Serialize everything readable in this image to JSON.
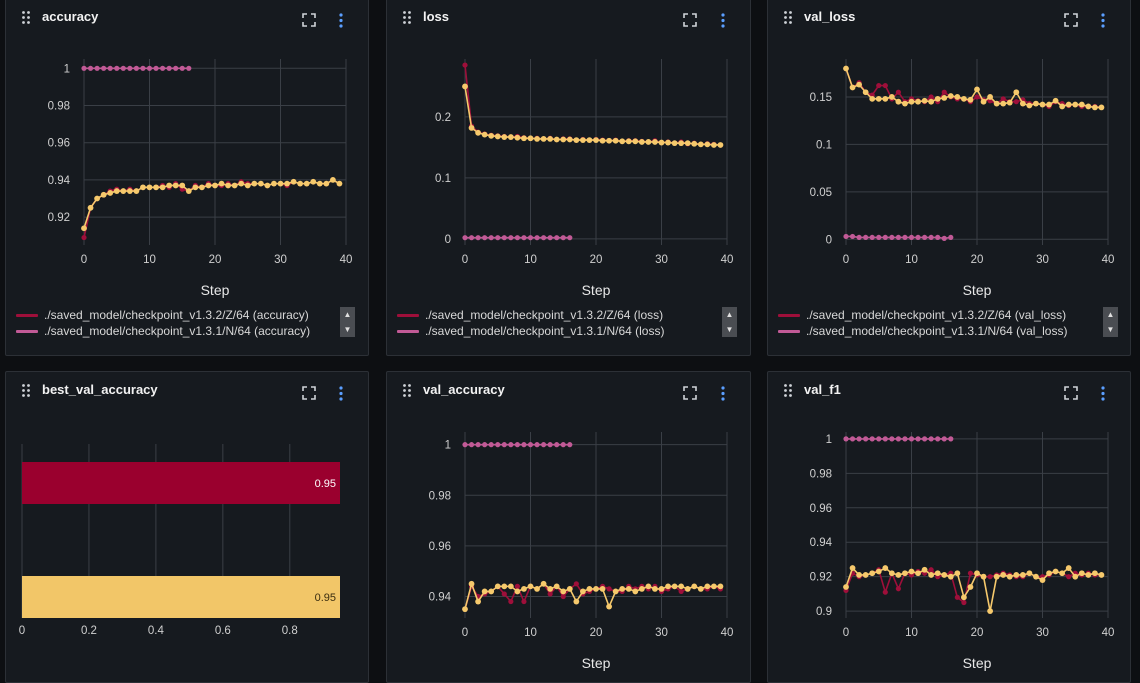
{
  "panels": [
    {
      "id": "accuracy",
      "title": "accuracy",
      "legend": [
        {
          "label": "./saved_model/checkpoint_v1.3.2/Z/64 (accuracy)",
          "color": "#9e0f3a"
        },
        {
          "label": "./saved_model/checkpoint_v1.3.1/N/64 (accuracy)",
          "color": "#c15a96"
        }
      ]
    },
    {
      "id": "loss",
      "title": "loss",
      "legend": [
        {
          "label": "./saved_model/checkpoint_v1.3.2/Z/64 (loss)",
          "color": "#9e0f3a"
        },
        {
          "label": "./saved_model/checkpoint_v1.3.1/N/64 (loss)",
          "color": "#c15a96"
        }
      ]
    },
    {
      "id": "val_loss",
      "title": "val_loss",
      "legend": [
        {
          "label": "./saved_model/checkpoint_v1.3.2/Z/64 (val_loss)",
          "color": "#9e0f3a"
        },
        {
          "label": "./saved_model/checkpoint_v1.3.1/N/64 (val_loss)",
          "color": "#c15a96"
        }
      ]
    },
    {
      "id": "best_val_accuracy",
      "title": "best_val_accuracy",
      "legend": []
    },
    {
      "id": "val_accuracy",
      "title": "val_accuracy",
      "legend": []
    },
    {
      "id": "val_f1",
      "title": "val_f1",
      "legend": []
    }
  ],
  "colors": {
    "run_z_raw": "#9e0f3a",
    "run_z_smooth": "#f6c96c",
    "run_n": "#c15a96",
    "bar_top": "#9a002e",
    "bar_bottom": "#f2c668",
    "grid": "#3a3f46",
    "tick": "#d0d0d0"
  },
  "chart_data": [
    {
      "id": "accuracy",
      "type": "line",
      "title": "accuracy",
      "xlabel": "Step",
      "ylabel": "",
      "xlim": [
        0,
        40
      ],
      "ylim": [
        0.905,
        1.005
      ],
      "xticks": [
        0,
        10,
        20,
        30,
        40
      ],
      "yticks": [
        0.92,
        0.94,
        0.96,
        0.98,
        1
      ],
      "yticklabels": [
        "0.92",
        "0.94",
        "0.96",
        "0.98",
        "1"
      ],
      "series": [
        {
          "name": "./saved_model/checkpoint_v1.3.2/Z/64 (accuracy)",
          "style": "raw",
          "values": [
            0.909,
            0.925,
            0.93,
            0.932,
            0.934,
            0.935,
            0.934,
            0.935,
            0.934,
            0.936,
            0.936,
            0.936,
            0.937,
            0.936,
            0.938,
            0.935,
            0.934,
            0.937,
            0.936,
            0.938,
            0.937,
            0.937,
            0.938,
            0.937,
            0.939,
            0.938,
            0.938,
            0.938,
            0.937,
            0.938,
            0.938,
            0.937,
            0.939,
            0.938,
            0.938,
            0.939,
            0.938,
            0.938,
            0.94,
            0.938
          ]
        },
        {
          "name": "",
          "style": "smooth",
          "values": [
            0.914,
            0.925,
            0.93,
            0.932,
            0.933,
            0.934,
            0.934,
            0.934,
            0.934,
            0.936,
            0.936,
            0.936,
            0.936,
            0.937,
            0.937,
            0.937,
            0.934,
            0.936,
            0.936,
            0.937,
            0.937,
            0.938,
            0.937,
            0.937,
            0.938,
            0.937,
            0.938,
            0.938,
            0.937,
            0.938,
            0.938,
            0.938,
            0.939,
            0.938,
            0.938,
            0.939,
            0.938,
            0.938,
            0.94,
            0.938
          ]
        },
        {
          "name": "./saved_model/checkpoint_v1.3.1/N/64 (accuracy)",
          "style": "run_n",
          "values": [
            1,
            1,
            1,
            1,
            1,
            1,
            1,
            1,
            1,
            1,
            1,
            1,
            1,
            1,
            1,
            1,
            1
          ]
        }
      ]
    },
    {
      "id": "loss",
      "type": "line",
      "title": "loss",
      "xlabel": "Step",
      "ylabel": "",
      "xlim": [
        0,
        40
      ],
      "ylim": [
        -0.01,
        0.295
      ],
      "xticks": [
        0,
        10,
        20,
        30,
        40
      ],
      "yticks": [
        0,
        0.1,
        0.2
      ],
      "yticklabels": [
        "0",
        "0.1",
        "0.2"
      ],
      "series": [
        {
          "name": "./saved_model/checkpoint_v1.3.2/Z/64 (loss)",
          "style": "raw",
          "values": [
            0.285,
            0.185,
            0.175,
            0.172,
            0.17,
            0.169,
            0.168,
            0.167,
            0.168,
            0.166,
            0.165,
            0.165,
            0.164,
            0.165,
            0.163,
            0.164,
            0.164,
            0.162,
            0.163,
            0.162,
            0.163,
            0.162,
            0.161,
            0.162,
            0.16,
            0.161,
            0.161,
            0.16,
            0.159,
            0.161,
            0.158,
            0.159,
            0.157,
            0.159,
            0.156,
            0.157,
            0.155,
            0.156,
            0.155,
            0.154
          ]
        },
        {
          "name": "",
          "style": "smooth",
          "values": [
            0.25,
            0.182,
            0.174,
            0.171,
            0.169,
            0.168,
            0.167,
            0.167,
            0.166,
            0.165,
            0.165,
            0.164,
            0.164,
            0.164,
            0.163,
            0.163,
            0.163,
            0.162,
            0.162,
            0.162,
            0.162,
            0.161,
            0.161,
            0.161,
            0.16,
            0.16,
            0.16,
            0.159,
            0.159,
            0.159,
            0.158,
            0.158,
            0.157,
            0.157,
            0.157,
            0.156,
            0.155,
            0.155,
            0.154,
            0.154
          ]
        },
        {
          "name": "./saved_model/checkpoint_v1.3.1/N/64 (loss)",
          "style": "run_n",
          "values": [
            0.002,
            0.002,
            0.002,
            0.002,
            0.002,
            0.002,
            0.002,
            0.002,
            0.002,
            0.002,
            0.002,
            0.002,
            0.002,
            0.002,
            0.002,
            0.002,
            0.002
          ]
        }
      ]
    },
    {
      "id": "val_loss",
      "type": "line",
      "title": "val_loss",
      "xlabel": "Step",
      "ylabel": "",
      "xlim": [
        0,
        40
      ],
      "ylim": [
        -0.006,
        0.19
      ],
      "xticks": [
        0,
        10,
        20,
        30,
        40
      ],
      "yticks": [
        0,
        0.05,
        0.1,
        0.15
      ],
      "yticklabels": [
        "0",
        "0.05",
        "0.1",
        "0.15"
      ],
      "series": [
        {
          "name": "./saved_model/checkpoint_v1.3.2/Z/64 (val_loss)",
          "style": "raw",
          "values": [
            0.18,
            0.16,
            0.165,
            0.155,
            0.152,
            0.162,
            0.162,
            0.148,
            0.155,
            0.145,
            0.148,
            0.146,
            0.145,
            0.15,
            0.145,
            0.155,
            0.15,
            0.148,
            0.148,
            0.145,
            0.15,
            0.147,
            0.146,
            0.143,
            0.148,
            0.145,
            0.145,
            0.147,
            0.143,
            0.143,
            0.142,
            0.14,
            0.145,
            0.143,
            0.141,
            0.142,
            0.14,
            0.14,
            0.14,
            0.139
          ]
        },
        {
          "name": "",
          "style": "smooth",
          "values": [
            0.18,
            0.16,
            0.163,
            0.155,
            0.148,
            0.148,
            0.148,
            0.15,
            0.145,
            0.143,
            0.145,
            0.145,
            0.146,
            0.145,
            0.148,
            0.149,
            0.151,
            0.15,
            0.148,
            0.147,
            0.158,
            0.145,
            0.15,
            0.143,
            0.143,
            0.144,
            0.155,
            0.143,
            0.141,
            0.143,
            0.142,
            0.142,
            0.146,
            0.14,
            0.142,
            0.142,
            0.142,
            0.14,
            0.139,
            0.139
          ]
        },
        {
          "name": "./saved_model/checkpoint_v1.3.1/N/64 (val_loss)",
          "style": "run_n",
          "values": [
            0.003,
            0.003,
            0.002,
            0.002,
            0.002,
            0.002,
            0.002,
            0.002,
            0.002,
            0.002,
            0.002,
            0.002,
            0.002,
            0.002,
            0.002,
            0.001,
            0.002
          ]
        }
      ]
    },
    {
      "id": "best_val_accuracy",
      "type": "bar",
      "title": "best_val_accuracy",
      "xlabel": "",
      "ylabel": "",
      "xlim": [
        0,
        0.95
      ],
      "xticks": [
        0,
        0.2,
        0.4,
        0.6,
        0.8
      ],
      "xticklabels": [
        "0",
        "0.2",
        "0.4",
        "0.6",
        "0.8"
      ],
      "series": [
        {
          "name": "",
          "values": [
            0.95
          ],
          "label": "0.95",
          "style": "bar_top"
        },
        {
          "name": "",
          "values": [
            0.95
          ],
          "label": "0.95",
          "style": "bar_bottom"
        }
      ]
    },
    {
      "id": "val_accuracy",
      "type": "line",
      "title": "val_accuracy",
      "xlabel": "Step",
      "ylabel": "",
      "xlim": [
        0,
        40
      ],
      "ylim": [
        0.9315,
        1.005
      ],
      "xticks": [
        0,
        10,
        20,
        30,
        40
      ],
      "yticks": [
        0.94,
        0.96,
        0.98,
        1
      ],
      "yticklabels": [
        "0.94",
        "0.96",
        "0.98",
        "1"
      ],
      "series": [
        {
          "name": "",
          "style": "raw",
          "values": [
            0.935,
            0.944,
            0.94,
            0.941,
            0.942,
            0.944,
            0.941,
            0.938,
            0.944,
            0.938,
            0.944,
            0.943,
            0.945,
            0.941,
            0.944,
            0.94,
            0.943,
            0.945,
            0.941,
            0.942,
            0.943,
            0.944,
            0.943,
            0.942,
            0.942,
            0.944,
            0.943,
            0.944,
            0.943,
            0.944,
            0.942,
            0.943,
            0.944,
            0.942,
            0.943,
            0.944,
            0.943,
            0.943,
            0.944,
            0.943
          ]
        },
        {
          "name": "",
          "style": "smooth",
          "values": [
            0.935,
            0.945,
            0.938,
            0.942,
            0.942,
            0.944,
            0.944,
            0.944,
            0.942,
            0.943,
            0.944,
            0.943,
            0.945,
            0.943,
            0.944,
            0.942,
            0.943,
            0.938,
            0.942,
            0.943,
            0.943,
            0.943,
            0.936,
            0.942,
            0.943,
            0.943,
            0.942,
            0.943,
            0.944,
            0.943,
            0.943,
            0.944,
            0.944,
            0.944,
            0.943,
            0.944,
            0.943,
            0.944,
            0.944,
            0.944
          ]
        },
        {
          "name": "",
          "style": "run_n",
          "values": [
            1,
            1,
            1,
            1,
            1,
            1,
            1,
            1,
            1,
            1,
            1,
            1,
            1,
            1,
            1,
            1,
            1
          ]
        }
      ]
    },
    {
      "id": "val_f1",
      "type": "line",
      "title": "val_f1",
      "xlabel": "Step",
      "ylabel": "",
      "xlim": [
        0,
        40
      ],
      "ylim": [
        0.896,
        1.004
      ],
      "xticks": [
        0,
        10,
        20,
        30,
        40
      ],
      "yticks": [
        0.9,
        0.92,
        0.94,
        0.96,
        0.98,
        1
      ],
      "yticklabels": [
        "0.9",
        "0.92",
        "0.94",
        "0.96",
        "0.98",
        "1"
      ],
      "series": [
        {
          "name": "",
          "style": "raw",
          "values": [
            0.912,
            0.922,
            0.92,
            0.921,
            0.922,
            0.924,
            0.911,
            0.922,
            0.913,
            0.922,
            0.921,
            0.923,
            0.922,
            0.924,
            0.92,
            0.921,
            0.922,
            0.908,
            0.905,
            0.922,
            0.921,
            0.92,
            0.92,
            0.921,
            0.922,
            0.921,
            0.92,
            0.92,
            0.922,
            0.92,
            0.92,
            0.921,
            0.923,
            0.922,
            0.92,
            0.922,
            0.921,
            0.922,
            0.921,
            0.921
          ]
        },
        {
          "name": "",
          "style": "smooth",
          "values": [
            0.914,
            0.925,
            0.921,
            0.921,
            0.922,
            0.923,
            0.925,
            0.922,
            0.921,
            0.922,
            0.923,
            0.922,
            0.924,
            0.921,
            0.922,
            0.921,
            0.92,
            0.922,
            0.908,
            0.914,
            0.922,
            0.92,
            0.9,
            0.92,
            0.921,
            0.92,
            0.921,
            0.921,
            0.922,
            0.92,
            0.918,
            0.922,
            0.923,
            0.922,
            0.925,
            0.92,
            0.922,
            0.921,
            0.922,
            0.921
          ]
        },
        {
          "name": "",
          "style": "run_n",
          "values": [
            1,
            1,
            1,
            1,
            1,
            1,
            1,
            1,
            1,
            1,
            1,
            1,
            1,
            1,
            1,
            1,
            1
          ]
        }
      ]
    }
  ]
}
